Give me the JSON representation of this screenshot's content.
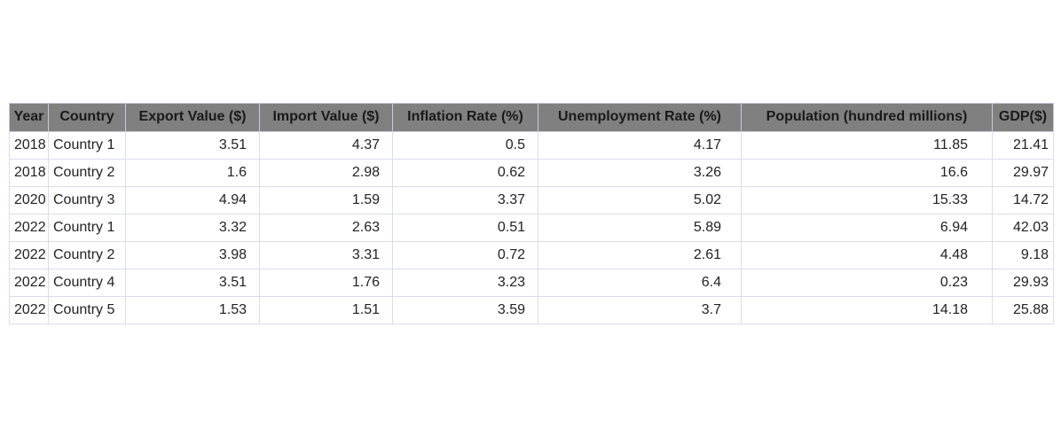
{
  "chart_data": {
    "type": "table",
    "columns": [
      "Year",
      "Country",
      "Export Value ($)",
      "Import Value ($)",
      "Inflation Rate (%)",
      "Unemployment Rate (%)",
      "Population (hundred millions)",
      "GDP($)"
    ],
    "rows": [
      [
        "2018",
        "Country 1",
        "3.51",
        "4.37",
        "0.5",
        "4.17",
        "11.85",
        "21.41"
      ],
      [
        "2018",
        "Country 2",
        "1.6",
        "2.98",
        "0.62",
        "3.26",
        "16.6",
        "29.97"
      ],
      [
        "2020",
        "Country 3",
        "4.94",
        "1.59",
        "3.37",
        "5.02",
        "15.33",
        "14.72"
      ],
      [
        "2022",
        "Country 1",
        "3.32",
        "2.63",
        "0.51",
        "5.89",
        "6.94",
        "42.03"
      ],
      [
        "2022",
        "Country 2",
        "3.98",
        "3.31",
        "0.72",
        "2.61",
        "4.48",
        "9.18"
      ],
      [
        "2022",
        "Country 4",
        "3.51",
        "1.76",
        "3.23",
        "6.4",
        "0.23",
        "29.93"
      ],
      [
        "2022",
        "Country 5",
        "1.53",
        "1.51",
        "3.59",
        "3.7",
        "14.18",
        "25.88"
      ]
    ]
  },
  "colors": {
    "header_bg": "#808080",
    "grid_line": "#dcdcf0",
    "text": "#222222"
  }
}
